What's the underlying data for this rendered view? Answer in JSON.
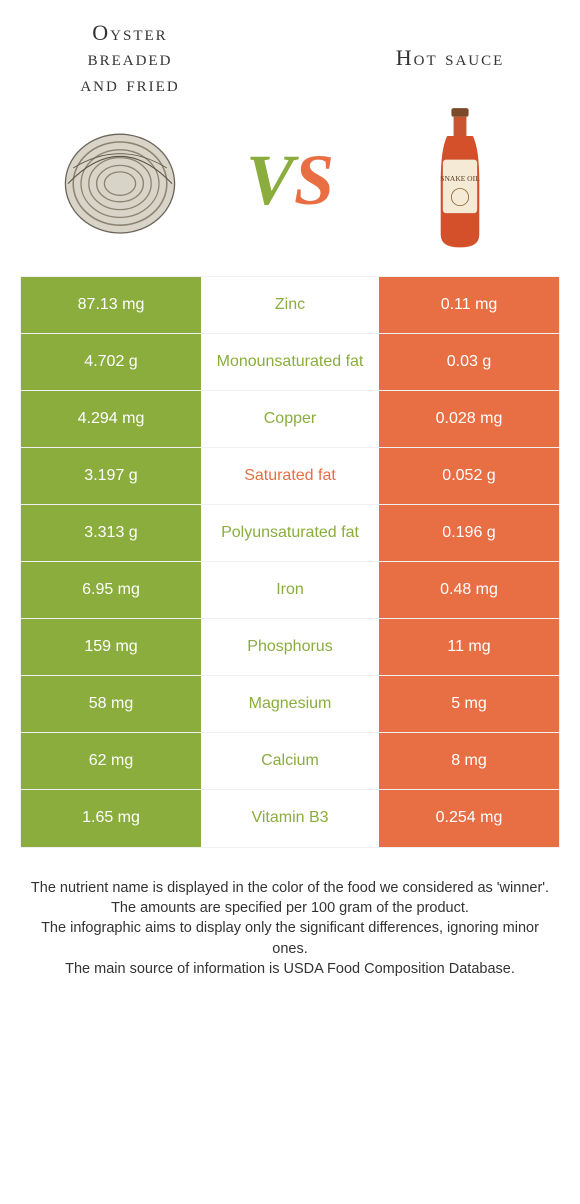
{
  "colors": {
    "left": "#8aad3e",
    "right": "#e86f44",
    "border": "#f0f0f0",
    "text": "#333333",
    "white": "#ffffff"
  },
  "header": {
    "left_title_line1": "Oyster",
    "left_title_line2": "breaded",
    "left_title_line3": "and fried",
    "right_title": "Hot sauce",
    "vs_v": "V",
    "vs_s": "S"
  },
  "rows": [
    {
      "left": "87.13 mg",
      "name": "Zinc",
      "right": "0.11 mg",
      "winner": "left"
    },
    {
      "left": "4.702 g",
      "name": "Monounsaturated fat",
      "right": "0.03 g",
      "winner": "left"
    },
    {
      "left": "4.294 mg",
      "name": "Copper",
      "right": "0.028 mg",
      "winner": "left"
    },
    {
      "left": "3.197 g",
      "name": "Saturated fat",
      "right": "0.052 g",
      "winner": "right"
    },
    {
      "left": "3.313 g",
      "name": "Polyunsaturated fat",
      "right": "0.196 g",
      "winner": "left"
    },
    {
      "left": "6.95 mg",
      "name": "Iron",
      "right": "0.48 mg",
      "winner": "left"
    },
    {
      "left": "159 mg",
      "name": "Phosphorus",
      "right": "11 mg",
      "winner": "left"
    },
    {
      "left": "58 mg",
      "name": "Magnesium",
      "right": "5 mg",
      "winner": "left"
    },
    {
      "left": "62 mg",
      "name": "Calcium",
      "right": "8 mg",
      "winner": "left"
    },
    {
      "left": "1.65 mg",
      "name": "Vitamin B3",
      "right": "0.254 mg",
      "winner": "left"
    }
  ],
  "footer": {
    "line1": "The nutrient name is displayed in the color of the food we considered as 'winner'.",
    "line2": "The amounts are specified per 100 gram of the product.",
    "line3": "The infographic aims to display only the significant differences, ignoring minor ones.",
    "line4": "The main source of information is USDA Food Composition Database."
  }
}
